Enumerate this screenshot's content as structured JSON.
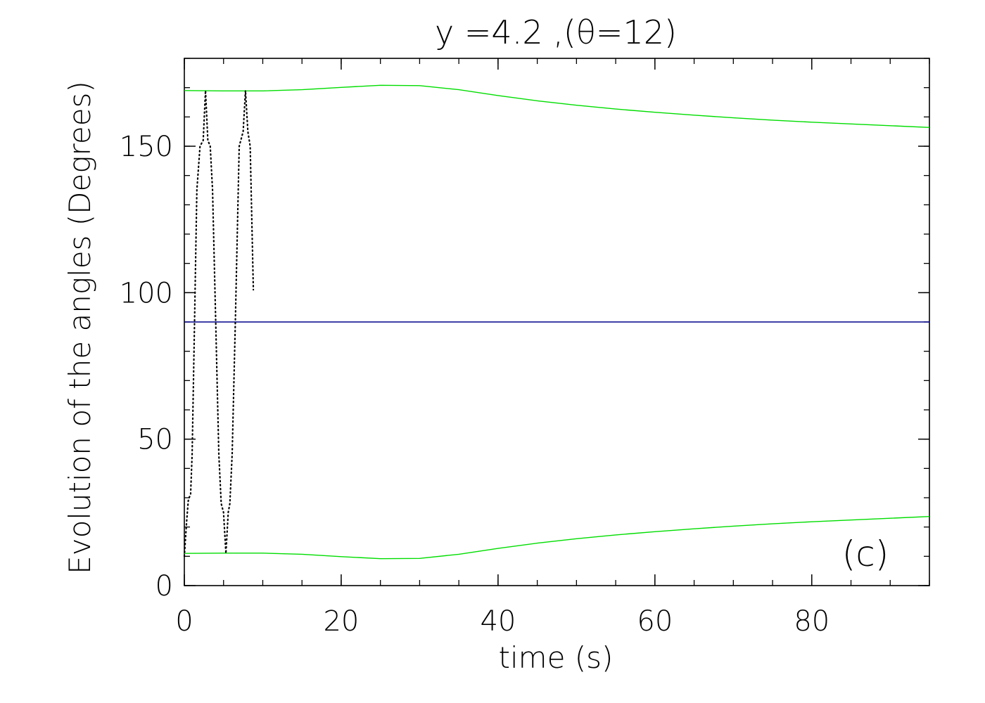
{
  "chart_data": {
    "type": "line",
    "title": "y  =4.2  ,(θ=12)",
    "xlabel": "time (s)",
    "ylabel": "Evolution of the angles (Degrees)",
    "panel_label": "(c)",
    "xlim": [
      0,
      95
    ],
    "ylim": [
      0,
      180
    ],
    "x_ticks": [
      0,
      20,
      40,
      60,
      80
    ],
    "y_ticks": [
      0,
      50,
      100,
      150
    ],
    "x_tick_labels": [
      "0",
      "20",
      "40",
      "60",
      "80"
    ],
    "y_tick_labels": [
      "0",
      "50",
      "100",
      "150"
    ],
    "x_minor_step": 5,
    "y_minor_step": 10,
    "grid": false,
    "series": [
      {
        "color": "#00dd00",
        "style": "solid",
        "x": [
          0,
          5,
          10,
          15,
          20,
          25,
          30,
          35,
          40,
          45,
          50,
          55,
          60,
          65,
          70,
          75,
          80,
          85,
          90,
          95
        ],
        "y": [
          169,
          168.9,
          168.9,
          169.3,
          170.1,
          170.8,
          170.7,
          169.3,
          167.3,
          165.5,
          164,
          162.7,
          161.6,
          160.6,
          159.7,
          158.9,
          158.2,
          157.6,
          157,
          156.4
        ]
      },
      {
        "color": "#00dd00",
        "style": "solid",
        "x": [
          0,
          5,
          10,
          15,
          20,
          25,
          30,
          35,
          40,
          45,
          50,
          55,
          60,
          65,
          70,
          75,
          80,
          85,
          90,
          95
        ],
        "y": [
          11,
          11.1,
          11.1,
          10.7,
          9.9,
          9.2,
          9.3,
          10.7,
          12.7,
          14.5,
          16,
          17.3,
          18.4,
          19.4,
          20.3,
          21.1,
          21.8,
          22.4,
          23,
          23.6
        ]
      },
      {
        "color": "#00008b",
        "style": "solid",
        "x": [
          0,
          95
        ],
        "y": [
          90,
          90
        ]
      },
      {
        "color": "#000000",
        "style": "dotted",
        "x": [
          0,
          0.3,
          0.5,
          0.6,
          0.8,
          1.0,
          1.3,
          1.6,
          2.0,
          2.4,
          2.7,
          3.0,
          3.3,
          3.6,
          4.0,
          4.4,
          4.7,
          5.0,
          5.3,
          5.6,
          5.8,
          6.1,
          6.5,
          7.0,
          7.5,
          7.8,
          8.1,
          8.4,
          8.8
        ],
        "y": [
          10,
          22,
          29,
          30,
          31,
          45,
          90,
          135,
          150,
          152,
          169,
          152,
          150,
          135,
          90,
          45,
          28,
          25,
          11,
          25,
          28,
          45,
          90,
          150,
          155,
          169,
          155,
          150,
          101
        ]
      }
    ]
  }
}
